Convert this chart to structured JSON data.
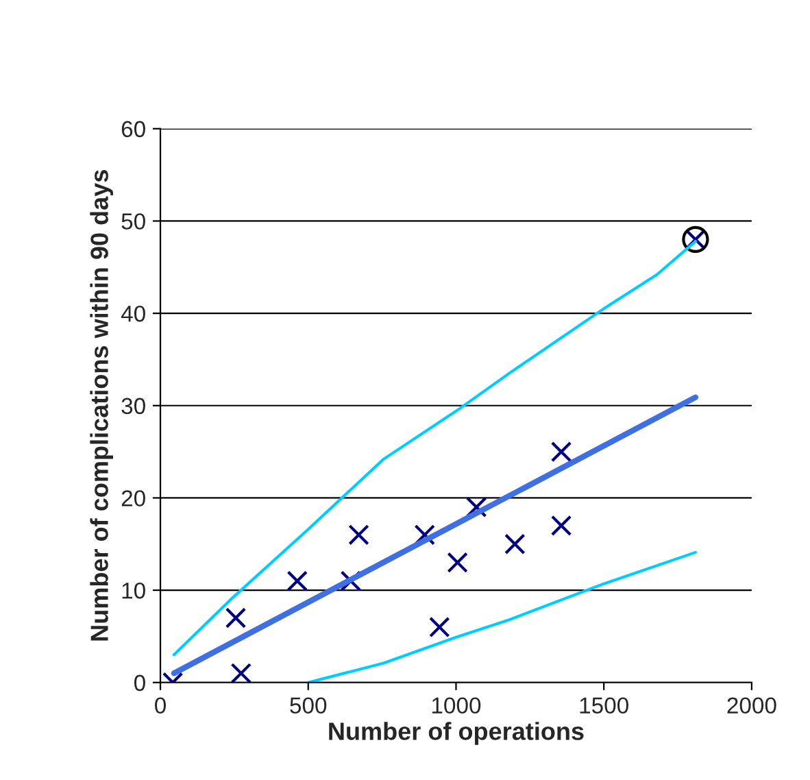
{
  "chart_data": {
    "type": "scatter",
    "xlabel": "Number of operations",
    "ylabel": "Number of complications within 90 days",
    "xlim": [
      0,
      2000
    ],
    "xticks": [
      0,
      500,
      1000,
      1500,
      2000
    ],
    "ylim": [
      0,
      60
    ],
    "yticks": [
      0,
      10,
      20,
      30,
      40,
      50,
      60
    ],
    "grid": "y",
    "legend": false,
    "series": [
      {
        "type": "line",
        "color": "#00ccff",
        "x": [
          46,
          245,
          500,
          755,
          1000,
          1180,
          1500,
          1680,
          1810
        ],
        "values": [
          3,
          9.2,
          16.6,
          24.2,
          29.4,
          33.5,
          40.5,
          44.2,
          47.8
        ]
      },
      {
        "type": "line",
        "color": "#00ccff",
        "x": [
          500,
          755,
          1000,
          1180,
          1500,
          1810
        ],
        "values": [
          0,
          2.1,
          4.9,
          6.8,
          10.7,
          14.1
        ]
      },
      {
        "type": "line",
        "color": "#3f6fe0",
        "x": [
          46,
          1810
        ],
        "values": [
          1,
          30.9
        ]
      },
      {
        "marker": "cross",
        "color": "#000080",
        "x": [
          42,
          255,
          273,
          463,
          644,
          671,
          894,
          944,
          1005,
          1069,
          1199,
          1356,
          1356,
          1810
        ],
        "values": [
          0,
          7,
          1,
          11,
          11,
          16,
          16,
          6,
          13,
          19,
          15,
          25,
          17,
          48
        ]
      },
      {
        "marker": "circle",
        "color": "#000000",
        "x": [
          1810
        ],
        "values": [
          48
        ]
      }
    ]
  }
}
